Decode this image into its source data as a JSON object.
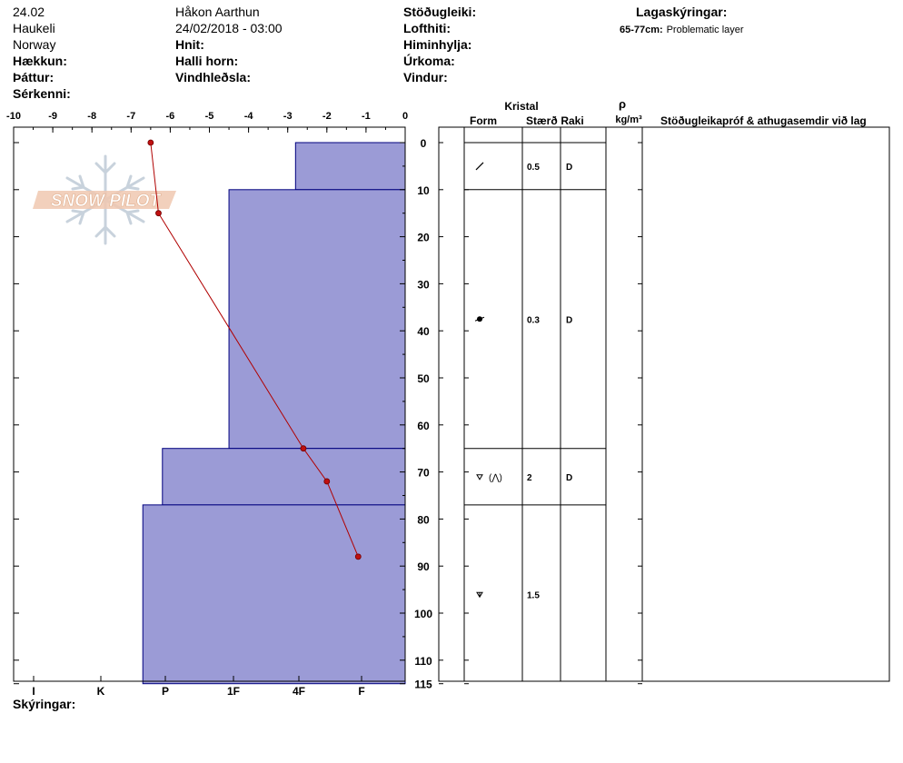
{
  "header": {
    "col1": [
      "24.02",
      "Haukeli",
      "Norway"
    ],
    "col1_bold": [
      "Hækkun:",
      "Þáttur:",
      "Sérkenni:"
    ],
    "col2": [
      "Håkon Aarthun",
      "24/02/2018 - 03:00"
    ],
    "col2_bold": [
      "Hnit:",
      "Halli horn:",
      "Vindhleðsla:"
    ],
    "col3_bold": [
      "Stöðugleiki:",
      "Lofthiti:",
      "Himinhylja:",
      "Úrkoma:",
      "Vindur:"
    ],
    "legend_title": "Lagaskýringar:",
    "legend_key": "65-77cm:",
    "legend_text": "Problematic layer",
    "footer": "Skýringar:"
  },
  "watermark": "SNOW PILOT",
  "table": {
    "crystal_header": "Kristal",
    "form_header": "Form",
    "size_header": "Stærð",
    "moisture_header": "Raki",
    "density_symbol": "ρ",
    "density_unit": "kg/m³",
    "comments_header": "Stöðugleikapróf & athugasemdir við lag",
    "layers": [
      {
        "form": "decomposing-icon",
        "size": "0.5",
        "moisture": "D"
      },
      {
        "form": "rounded-faceted-icon",
        "size": "0.3",
        "moisture": "D"
      },
      {
        "form": "depth-hoar-facet-icon",
        "size": "2",
        "moisture": "D"
      },
      {
        "form": "depth-hoar-icon",
        "size": "1.5",
        "moisture": ""
      }
    ]
  },
  "chart_data": {
    "type": "area",
    "temperature_axis": {
      "ticks": [
        "-10",
        "-9",
        "-8",
        "-7",
        "-6",
        "-5",
        "-4",
        "-3",
        "-2",
        "-1",
        "0"
      ],
      "range": [
        -10,
        0
      ]
    },
    "depth_axis": {
      "ticks": [
        "0",
        "10",
        "20",
        "30",
        "40",
        "50",
        "60",
        "70",
        "80",
        "90",
        "100",
        "110",
        "115"
      ],
      "range": [
        0,
        115
      ]
    },
    "hardness_axis": {
      "labels": [
        "I",
        "K",
        "P",
        "1F",
        "4F",
        "F"
      ]
    },
    "hardness_layers": [
      {
        "top": 0,
        "bottom": 10,
        "temp_edge": -2.8
      },
      {
        "top": 10,
        "bottom": 65,
        "temp_edge": -4.5
      },
      {
        "top": 65,
        "bottom": 77,
        "temp_edge": -6.2
      },
      {
        "top": 77,
        "bottom": 115,
        "temp_edge": -6.7
      }
    ],
    "temperature_profile": [
      {
        "depth": 0,
        "temp": -6.5
      },
      {
        "depth": 15,
        "temp": -6.3
      },
      {
        "depth": 65,
        "temp": -2.6
      },
      {
        "depth": 72,
        "temp": -2.0
      },
      {
        "depth": 88,
        "temp": -1.2
      }
    ],
    "layer_boundaries": [
      0,
      10,
      65,
      77
    ],
    "colors": {
      "hardness_fill": "#9b9bd6",
      "hardness_stroke": "#00007f",
      "temp_line": "#b00000",
      "temp_point": "#c01010"
    }
  }
}
